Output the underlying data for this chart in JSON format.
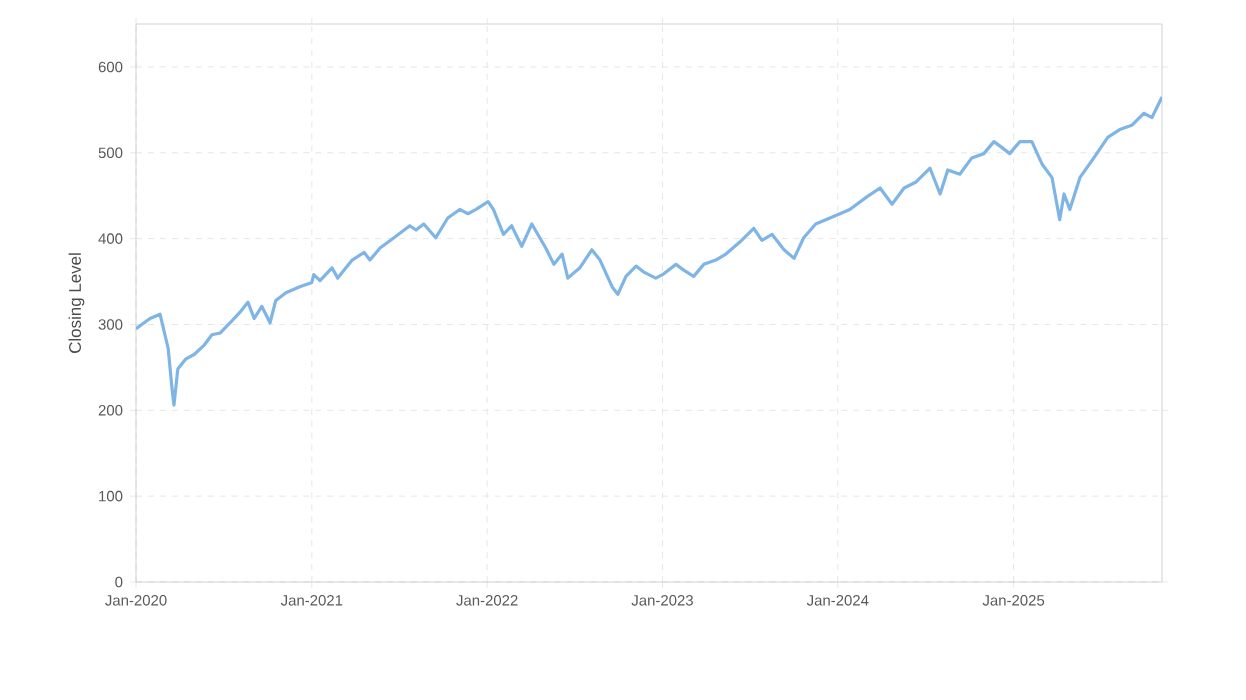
{
  "chart_data": {
    "type": "line",
    "ylabel": "Closing Level",
    "x": [
      "2020-01-01",
      "2020-01-30",
      "2020-02-20",
      "2020-03-08",
      "2020-03-16",
      "2020-03-20",
      "2020-03-28",
      "2020-04-14",
      "2020-05-01",
      "2020-05-22",
      "2020-06-07",
      "2020-06-24",
      "2020-07-15",
      "2020-08-04",
      "2020-08-21",
      "2020-09-03",
      "2020-09-19",
      "2020-10-06",
      "2020-10-18",
      "2020-11-08",
      "2020-12-07",
      "2021-01-01",
      "2021-01-05",
      "2021-01-18",
      "2021-02-12",
      "2021-02-24",
      "2021-03-26",
      "2021-04-20",
      "2021-05-02",
      "2021-05-23",
      "2021-06-21",
      "2021-07-24",
      "2021-08-06",
      "2021-08-22",
      "2021-09-16",
      "2021-10-11",
      "2021-11-05",
      "2021-11-22",
      "2021-12-09",
      "2022-01-03",
      "2022-01-14",
      "2022-02-04",
      "2022-02-21",
      "2022-03-14",
      "2022-04-04",
      "2022-05-03",
      "2022-05-20",
      "2022-06-06",
      "2022-06-18",
      "2022-07-13",
      "2022-08-07",
      "2022-08-24",
      "2022-09-18",
      "2022-09-30",
      "2022-10-17",
      "2022-11-07",
      "2022-11-23",
      "2022-12-18",
      "2023-01-01",
      "2023-01-29",
      "2023-02-15",
      "2023-03-07",
      "2023-03-28",
      "2023-04-22",
      "2023-05-13",
      "2023-06-11",
      "2023-07-10",
      "2023-07-27",
      "2023-08-17",
      "2023-09-11",
      "2023-10-02",
      "2023-10-22",
      "2023-11-16",
      "2023-12-28",
      "2024-01-26",
      "2024-02-29",
      "2024-03-29",
      "2024-04-23",
      "2024-05-18",
      "2024-06-12",
      "2024-07-11",
      "2024-08-01",
      "2024-08-17",
      "2024-09-11",
      "2024-10-06",
      "2024-10-31",
      "2024-11-21",
      "2024-12-08",
      "2024-12-24",
      "2025-01-14",
      "2025-02-08",
      "2025-03-01",
      "2025-03-22",
      "2025-04-07",
      "2025-04-16",
      "2025-04-28",
      "2025-05-19",
      "2025-06-17",
      "2025-07-16",
      "2025-08-10",
      "2025-09-04",
      "2025-09-29",
      "2025-10-16",
      "2025-11-06"
    ],
    "series": [
      {
        "color": "#7fb5e6",
        "values": [
          295,
          307,
          312,
          272,
          225,
          206,
          248,
          260,
          265,
          276,
          288,
          290,
          302,
          314,
          326,
          307,
          321,
          302,
          328,
          337,
          344,
          349,
          358,
          351,
          366,
          354,
          375,
          384,
          375,
          389,
          401,
          415,
          410,
          417,
          401,
          424,
          434,
          429,
          434,
          443,
          434,
          405,
          415,
          391,
          417,
          389,
          370,
          382,
          354,
          366,
          387,
          375,
          344,
          335,
          356,
          368,
          361,
          354,
          358,
          370,
          363,
          356,
          370,
          375,
          382,
          396,
          412,
          398,
          405,
          387,
          377,
          401,
          417,
          427,
          434,
          448,
          459,
          440,
          459,
          466,
          482,
          452,
          480,
          475,
          494,
          499,
          513,
          506,
          499,
          513,
          513,
          487,
          471,
          422,
          452,
          434,
          471,
          494,
          518,
          527,
          532,
          546,
          541,
          565
        ]
      }
    ],
    "xlim": [
      "2020-01-01",
      "2025-11-06"
    ],
    "xticks": [
      {
        "value": "2020-01-01",
        "label": "Jan-2020"
      },
      {
        "value": "2021-01-01",
        "label": "Jan-2021"
      },
      {
        "value": "2022-01-01",
        "label": "Jan-2022"
      },
      {
        "value": "2023-01-01",
        "label": "Jan-2023"
      },
      {
        "value": "2024-01-01",
        "label": "Jan-2024"
      },
      {
        "value": "2025-01-01",
        "label": "Jan-2025"
      }
    ],
    "ylim": [
      0,
      650
    ],
    "yticks": [
      0,
      100,
      200,
      300,
      400,
      500,
      600
    ],
    "grid": true,
    "marker": "none",
    "line_style": "solid"
  }
}
